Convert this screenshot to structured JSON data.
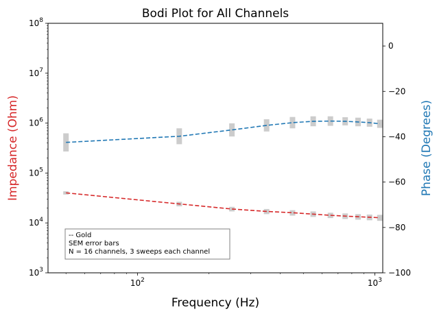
{
  "chart_data": {
    "type": "line",
    "title": "Bodi Plot for All Channels",
    "xlabel": "Frequency (Hz)",
    "ylabel_left": "Impedance (Ohm)",
    "ylabel_right": "Phase (Degrees)",
    "xscale": "log",
    "yscale_left": "log",
    "xlim": [
      42,
      1080
    ],
    "ylim_left": [
      1000,
      100000000
    ],
    "ylim_right": [
      -100,
      10
    ],
    "x_tick_labels": [
      {
        "value": 100,
        "base": "10",
        "exp": "2"
      },
      {
        "value": 1000,
        "base": "10",
        "exp": "3"
      }
    ],
    "y_left_tick_labels": [
      {
        "value": 1000,
        "base": "10",
        "exp": "3"
      },
      {
        "value": 10000,
        "base": "10",
        "exp": "4"
      },
      {
        "value": 100000,
        "base": "10",
        "exp": "5"
      },
      {
        "value": 1000000,
        "base": "10",
        "exp": "6"
      },
      {
        "value": 10000000,
        "base": "10",
        "exp": "7"
      },
      {
        "value": 100000000,
        "base": "10",
        "exp": "8"
      }
    ],
    "y_right_tick_labels": [
      {
        "value": 0,
        "label": "0"
      },
      {
        "value": -20,
        "label": "−20"
      },
      {
        "value": -40,
        "label": "−40"
      },
      {
        "value": -60,
        "label": "−60"
      },
      {
        "value": -80,
        "label": "−80"
      },
      {
        "value": -100,
        "label": "−100"
      }
    ],
    "x": [
      50,
      150,
      250,
      350,
      450,
      550,
      650,
      750,
      850,
      950,
      1050
    ],
    "series": [
      {
        "axis": "left",
        "color": "#d62728",
        "linestyle": "dashed",
        "values": [
          40000,
          24000,
          19000,
          17000,
          16000,
          15000,
          14200,
          13700,
          13300,
          13000,
          12700
        ],
        "err_low": [
          37000,
          21500,
          17000,
          15000,
          14000,
          13200,
          12500,
          12000,
          11600,
          11300,
          11000
        ],
        "err_high": [
          43000,
          26500,
          21000,
          19000,
          18000,
          17000,
          16000,
          15500,
          15000,
          14700,
          14500
        ]
      },
      {
        "axis": "right",
        "color": "#1f77b4",
        "linestyle": "dashed",
        "values": [
          -42.5,
          -39.8,
          -37.0,
          -35.0,
          -33.8,
          -33.2,
          -33.1,
          -33.2,
          -33.5,
          -33.8,
          -34.3
        ],
        "err_low": [
          -46.5,
          -43.3,
          -39.9,
          -37.7,
          -36.3,
          -35.4,
          -35.2,
          -35.0,
          -35.4,
          -35.6,
          -36.1
        ],
        "err_high": [
          -38.5,
          -36.3,
          -34.1,
          -32.3,
          -31.3,
          -31.0,
          -31.0,
          -31.4,
          -31.6,
          -32.0,
          -32.5
        ]
      }
    ],
    "errorbar_color": "#cccccc",
    "ylabel_left_color": "#d62728",
    "ylabel_right_color": "#1f77b4",
    "annotation_lines": [
      "-- Gold",
      "SEM error bars",
      "N = 16 channels, 3 sweeps each channel"
    ],
    "annotation_placement": "bottom-left",
    "grid": false
  }
}
